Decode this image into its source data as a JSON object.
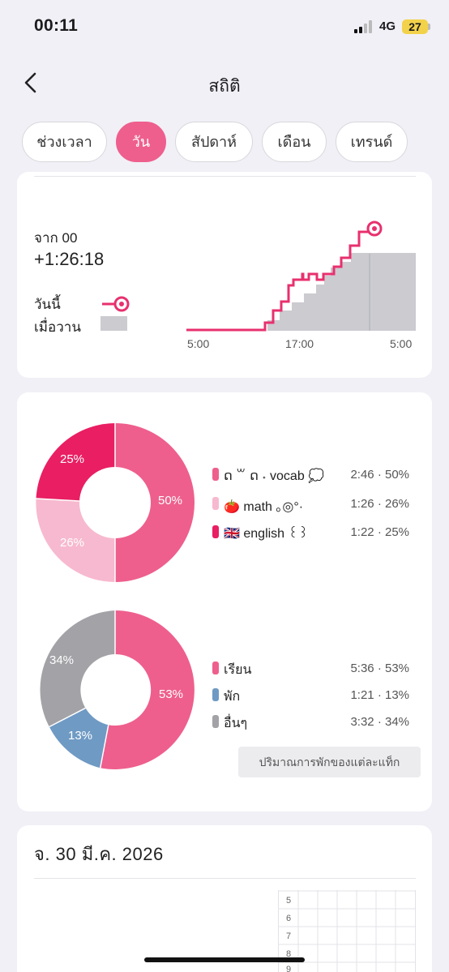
{
  "status_bar": {
    "time": "00:11",
    "network": "4G",
    "battery": "27"
  },
  "header": {
    "title": "สถิติ"
  },
  "tabs": [
    {
      "label": "ช่วงเวลา",
      "active": false
    },
    {
      "label": "วัน",
      "active": true
    },
    {
      "label": "สัปดาห์",
      "active": false
    },
    {
      "label": "เดือน",
      "active": false
    },
    {
      "label": "เทรนด์",
      "active": false
    }
  ],
  "cumulative": {
    "from_label": "จาก 00",
    "delta": "+1:26:18",
    "legend_today": "วันนี้",
    "legend_yesterday": "เมื่อวาน",
    "x_ticks": [
      "5:00",
      "17:00",
      "5:00"
    ]
  },
  "subjects": [
    {
      "name": "ດ ꒳ ດ ˖ vocab 💭",
      "value": "2:46 · 50%",
      "percent": "50%",
      "color": "#ee5f8d"
    },
    {
      "name": "🍅 math ｡◎°·",
      "value": "1:26 · 26%",
      "percent": "26%",
      "color": "#f7b9cf"
    },
    {
      "name": "🇬🇧 english ꒰꒱",
      "value": "1:22 · 25%",
      "percent": "25%",
      "color": "#e91e63"
    }
  ],
  "activities": [
    {
      "name": "เรียน",
      "value": "5:36 · 53%",
      "percent": "53%",
      "color": "#ee5f8d"
    },
    {
      "name": "พัก",
      "value": "1:21 · 13%",
      "percent": "13%",
      "color": "#6f9ac4"
    },
    {
      "name": "อื่นๆ",
      "value": "3:32 · 34%",
      "percent": "34%",
      "color": "#a2a2a7"
    }
  ],
  "break_button": "ปริมาณการพักของแต่ละแท็ก",
  "day_card": {
    "date": "จ. 30 มี.ค. 2026",
    "hour_labels": [
      "5",
      "6",
      "7",
      "8",
      "9"
    ]
  },
  "chart_data": [
    {
      "type": "line",
      "title": "",
      "x_ticks": [
        "5:00",
        "17:00",
        "5:00"
      ],
      "series": [
        {
          "name": "วันนี้",
          "color": "#e8306e"
        },
        {
          "name": "เมื่อวาน",
          "color": "#cbcbd0"
        }
      ]
    },
    {
      "type": "pie",
      "labels": [
        "ດ ꒳ ດ ˖ vocab 💭",
        "🍅 math ｡◎°·",
        "🇬🇧 english ꒰꒱"
      ],
      "values": [
        50,
        26,
        25
      ],
      "durations": [
        "2:46",
        "1:26",
        "1:22"
      ]
    },
    {
      "type": "pie",
      "labels": [
        "เรียน",
        "พัก",
        "อื่นๆ"
      ],
      "values": [
        53,
        13,
        34
      ],
      "durations": [
        "5:36",
        "1:21",
        "3:32"
      ]
    }
  ]
}
